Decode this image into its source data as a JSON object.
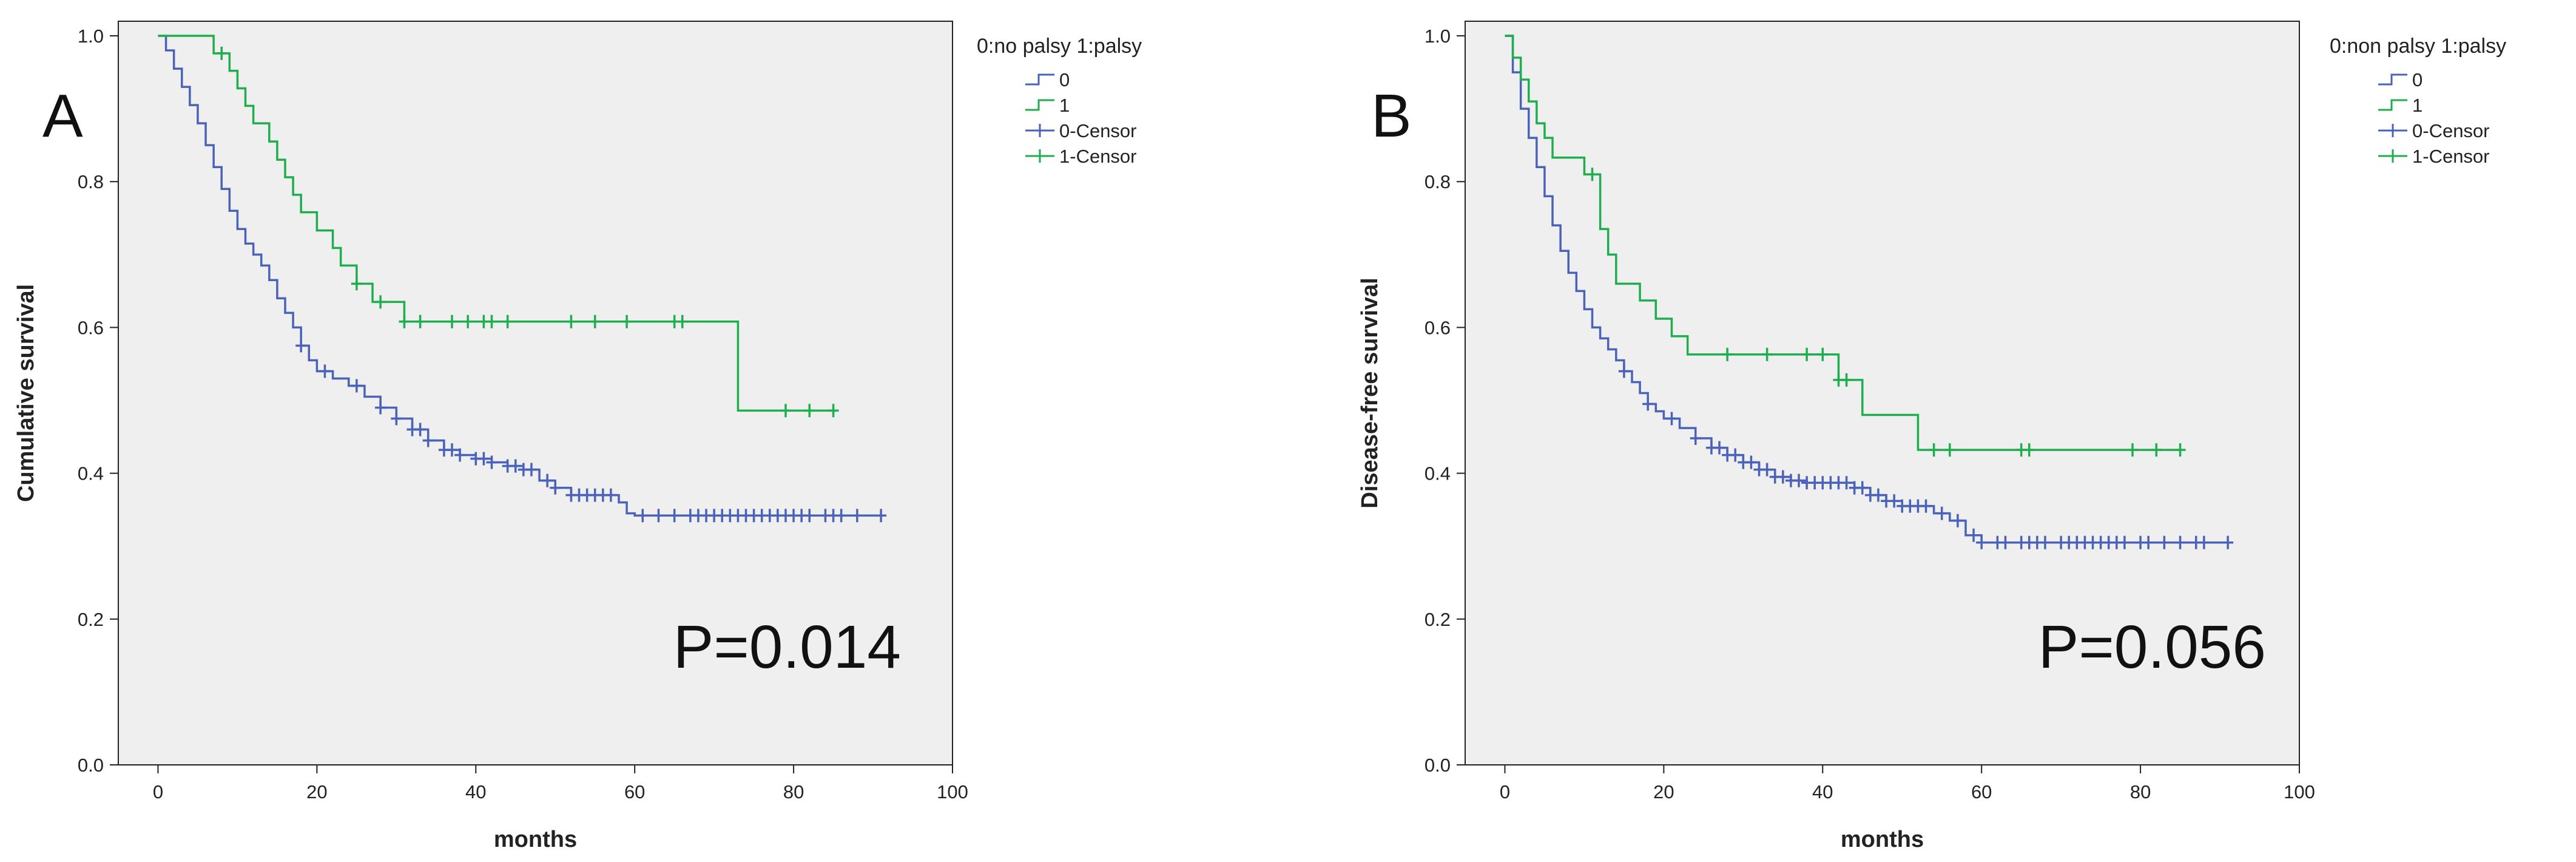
{
  "colors": {
    "group0": "#4a62b8",
    "group1": "#1fae4e",
    "plotBackground": "#efefef",
    "axis": "#222222",
    "text": "#222222"
  },
  "chart_data": [
    {
      "type": "line",
      "subtype": "kaplan-meier",
      "panel_label": "A",
      "title": "",
      "xlabel": "months",
      "ylabel": "Cumulative survival",
      "xlim": [
        -5,
        100
      ],
      "ylim": [
        0,
        1.02
      ],
      "xticks": [
        0,
        20,
        40,
        60,
        80,
        100
      ],
      "yticks": [
        0.0,
        0.2,
        0.4,
        0.6,
        0.8,
        1.0
      ],
      "xtick_labels": [
        "0",
        "20",
        "40",
        "60",
        "80",
        "100"
      ],
      "ytick_labels": [
        "0.0",
        "0.2",
        "0.4",
        "0.6",
        "0.8",
        "1.0"
      ],
      "annotation": "P=0.014",
      "legend": {
        "title": "0:no palsy 1:palsy",
        "placement": "top-right outside",
        "entries": [
          "0",
          "1",
          "0-Censor",
          "1-Censor"
        ]
      },
      "series": [
        {
          "name": "0",
          "color_key": "group0",
          "steps": [
            [
              0,
              1.0
            ],
            [
              1,
              0.98
            ],
            [
              2,
              0.955
            ],
            [
              3,
              0.93
            ],
            [
              4,
              0.905
            ],
            [
              5,
              0.88
            ],
            [
              6,
              0.85
            ],
            [
              7,
              0.82
            ],
            [
              8,
              0.79
            ],
            [
              9,
              0.76
            ],
            [
              10,
              0.735
            ],
            [
              11,
              0.715
            ],
            [
              12,
              0.7
            ],
            [
              13,
              0.685
            ],
            [
              14,
              0.665
            ],
            [
              15,
              0.64
            ],
            [
              16,
              0.62
            ],
            [
              17,
              0.6
            ],
            [
              18,
              0.575
            ],
            [
              19,
              0.555
            ],
            [
              20,
              0.54
            ],
            [
              22,
              0.53
            ],
            [
              24,
              0.52
            ],
            [
              26,
              0.505
            ],
            [
              28,
              0.49
            ],
            [
              30,
              0.475
            ],
            [
              32,
              0.46
            ],
            [
              34,
              0.445
            ],
            [
              36,
              0.432
            ],
            [
              38,
              0.425
            ],
            [
              40,
              0.42
            ],
            [
              42,
              0.415
            ],
            [
              44,
              0.41
            ],
            [
              46,
              0.405
            ],
            [
              48,
              0.39
            ],
            [
              50,
              0.38
            ],
            [
              52,
              0.37
            ],
            [
              58,
              0.36
            ],
            [
              59,
              0.345
            ],
            [
              60,
              0.342
            ],
            [
              91,
              0.342
            ]
          ],
          "censor_x": [
            18,
            21,
            25,
            28,
            30,
            32,
            33,
            34,
            36,
            37,
            38,
            40,
            41,
            42,
            44,
            45,
            46,
            47,
            49,
            50,
            52,
            53,
            54,
            55,
            56,
            57,
            61,
            63,
            65,
            67,
            68,
            69,
            70,
            71,
            72,
            73,
            74,
            75,
            76,
            77,
            78,
            79,
            80,
            81,
            82,
            84,
            85,
            86,
            88,
            91
          ]
        },
        {
          "name": "1",
          "color_key": "group1",
          "steps": [
            [
              0,
              1.0
            ],
            [
              7,
              0.976
            ],
            [
              9,
              0.952
            ],
            [
              10,
              0.928
            ],
            [
              11,
              0.904
            ],
            [
              12,
              0.88
            ],
            [
              14,
              0.855
            ],
            [
              15,
              0.83
            ],
            [
              16,
              0.806
            ],
            [
              17,
              0.782
            ],
            [
              18,
              0.758
            ],
            [
              20,
              0.733
            ],
            [
              22,
              0.709
            ],
            [
              23,
              0.685
            ],
            [
              25,
              0.66
            ],
            [
              27,
              0.635
            ],
            [
              31,
              0.608
            ],
            [
              73,
              0.608
            ],
            [
              73,
              0.486
            ],
            [
              85,
              0.486
            ]
          ],
          "censor_x": [
            8,
            25,
            28,
            31,
            33,
            37,
            39,
            41,
            42,
            44,
            52,
            55,
            59,
            65,
            66,
            79,
            82,
            85
          ]
        }
      ]
    },
    {
      "type": "line",
      "subtype": "kaplan-meier",
      "panel_label": "B",
      "title": "",
      "xlabel": "months",
      "ylabel": "Disease-free survival",
      "xlim": [
        -5,
        100
      ],
      "ylim": [
        0,
        1.02
      ],
      "xticks": [
        0,
        20,
        40,
        60,
        80,
        100
      ],
      "yticks": [
        0.0,
        0.2,
        0.4,
        0.6,
        0.8,
        1.0
      ],
      "xtick_labels": [
        "0",
        "20",
        "40",
        "60",
        "80",
        "100"
      ],
      "ytick_labels": [
        "0.0",
        "0.2",
        "0.4",
        "0.6",
        "0.8",
        "1.0"
      ],
      "annotation": "P=0.056",
      "legend": {
        "title": "0:non palsy 1:palsy",
        "placement": "top-right outside",
        "entries": [
          "0",
          "1",
          "0-Censor",
          "1-Censor"
        ]
      },
      "series": [
        {
          "name": "0",
          "color_key": "group0",
          "steps": [
            [
              0,
              1.0
            ],
            [
              1,
              0.95
            ],
            [
              2,
              0.9
            ],
            [
              3,
              0.86
            ],
            [
              4,
              0.82
            ],
            [
              5,
              0.78
            ],
            [
              6,
              0.74
            ],
            [
              7,
              0.705
            ],
            [
              8,
              0.675
            ],
            [
              9,
              0.65
            ],
            [
              10,
              0.625
            ],
            [
              11,
              0.6
            ],
            [
              12,
              0.585
            ],
            [
              13,
              0.57
            ],
            [
              14,
              0.555
            ],
            [
              15,
              0.54
            ],
            [
              16,
              0.525
            ],
            [
              17,
              0.51
            ],
            [
              18,
              0.495
            ],
            [
              19,
              0.485
            ],
            [
              20,
              0.475
            ],
            [
              22,
              0.462
            ],
            [
              24,
              0.448
            ],
            [
              26,
              0.435
            ],
            [
              28,
              0.425
            ],
            [
              30,
              0.415
            ],
            [
              32,
              0.405
            ],
            [
              34,
              0.395
            ],
            [
              36,
              0.39
            ],
            [
              38,
              0.387
            ],
            [
              44,
              0.38
            ],
            [
              46,
              0.37
            ],
            [
              48,
              0.362
            ],
            [
              50,
              0.355
            ],
            [
              54,
              0.345
            ],
            [
              56,
              0.335
            ],
            [
              58,
              0.315
            ],
            [
              60,
              0.305
            ],
            [
              91,
              0.305
            ]
          ],
          "censor_x": [
            15,
            18,
            21,
            24,
            26,
            27,
            28,
            29,
            30,
            31,
            32,
            33,
            34,
            35,
            36,
            37,
            38,
            39,
            40,
            41,
            42,
            43,
            44,
            45,
            46,
            47,
            48,
            49,
            50,
            51,
            52,
            53,
            55,
            57,
            59,
            60,
            62,
            63,
            65,
            66,
            67,
            68,
            70,
            71,
            72,
            73,
            74,
            75,
            76,
            77,
            78,
            80,
            81,
            83,
            85,
            87,
            88,
            91
          ]
        },
        {
          "name": "1",
          "color_key": "group1",
          "steps": [
            [
              0,
              1.0
            ],
            [
              1,
              0.97
            ],
            [
              2,
              0.94
            ],
            [
              3,
              0.91
            ],
            [
              4,
              0.88
            ],
            [
              5,
              0.86
            ],
            [
              6,
              0.833
            ],
            [
              10,
              0.81
            ],
            [
              12,
              0.78
            ],
            [
              12,
              0.735
            ],
            [
              13,
              0.7
            ],
            [
              14,
              0.66
            ],
            [
              17,
              0.637
            ],
            [
              19,
              0.612
            ],
            [
              21,
              0.588
            ],
            [
              23,
              0.563
            ],
            [
              41,
              0.563
            ],
            [
              42,
              0.528
            ],
            [
              45,
              0.528
            ],
            [
              45,
              0.48
            ],
            [
              48,
              0.48
            ],
            [
              52,
              0.432
            ],
            [
              85,
              0.432
            ]
          ],
          "censor_x": [
            11,
            28,
            33,
            38,
            40,
            42,
            43,
            54,
            56,
            65,
            66,
            79,
            82,
            85
          ]
        }
      ]
    }
  ]
}
